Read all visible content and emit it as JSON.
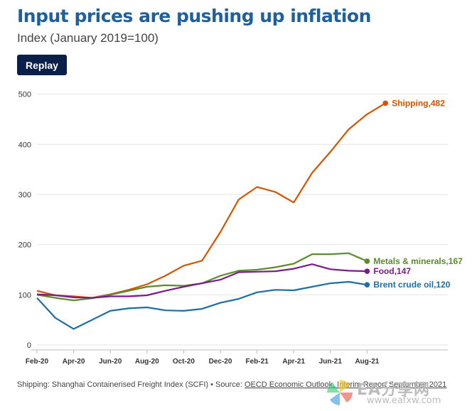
{
  "header": {
    "title": "Input prices are pushing up inflation",
    "subtitle": "Index (January 2019=100)",
    "replay_label": "Replay"
  },
  "chart_data": {
    "type": "line",
    "title": "Input prices are pushing up inflation",
    "subtitle": "Index (January 2019=100)",
    "xlabel": "",
    "ylabel": "",
    "ylim": [
      0,
      500
    ],
    "yticks": [
      0,
      100,
      200,
      300,
      400,
      500
    ],
    "grid": true,
    "legend": "end-of-line labels",
    "x": [
      "Feb-20",
      "Mar-20",
      "Apr-20",
      "May-20",
      "Jun-20",
      "Jul-20",
      "Aug-20",
      "Sep-20",
      "Oct-20",
      "Nov-20",
      "Dec-20",
      "Jan-21",
      "Feb-21",
      "Mar-21",
      "Apr-21",
      "May-21",
      "Jun-21",
      "Jul-21",
      "Aug-21",
      "Sep-21"
    ],
    "xtick_labels": [
      "Feb-20",
      "Apr-20",
      "Jun-20",
      "Aug-20",
      "Oct-20",
      "Dec-20",
      "Feb-21",
      "Apr-21",
      "Jun-21",
      "Aug-21"
    ],
    "series": [
      {
        "name": "Shipping",
        "end_label": "Shipping,482",
        "color": "#d35400",
        "values": [
          108,
          99,
          97,
          94,
          101,
          110,
          121,
          138,
          158,
          168,
          225,
          290,
          315,
          305,
          284,
          343,
          385,
          430,
          460,
          482
        ]
      },
      {
        "name": "Metals & minerals",
        "end_label": "Metals & minerals,167",
        "color": "#5b8c2a",
        "values": [
          100,
          94,
          89,
          93,
          100,
          108,
          116,
          119,
          118,
          123,
          138,
          148,
          150,
          155,
          162,
          181,
          181,
          183,
          167,
          null
        ]
      },
      {
        "name": "Food",
        "end_label": "Food,147",
        "color": "#7a1a8c",
        "values": [
          101,
          99,
          95,
          94,
          97,
          97,
          99,
          108,
          116,
          123,
          130,
          145,
          146,
          147,
          152,
          161,
          151,
          148,
          147,
          null
        ]
      },
      {
        "name": "Brent crude oil",
        "end_label": "Brent crude oil,120",
        "color": "#1b6ea6",
        "values": [
          94,
          54,
          32,
          50,
          68,
          73,
          75,
          69,
          68,
          72,
          84,
          92,
          105,
          110,
          109,
          116,
          123,
          126,
          120,
          null
        ]
      }
    ]
  },
  "footer": {
    "note": "Shipping: Shanghai Containerised Freight Index (SCFI) • Source: ",
    "source_link": "OECD Economic Outlook, Interim Report September 2021"
  },
  "watermark": {
    "text": "EA分享网",
    "url": "www.eafxw.com"
  },
  "colors": {
    "title": "#1f5f9e",
    "button": "#0b1f4b",
    "grid": "#e6e6e6"
  }
}
